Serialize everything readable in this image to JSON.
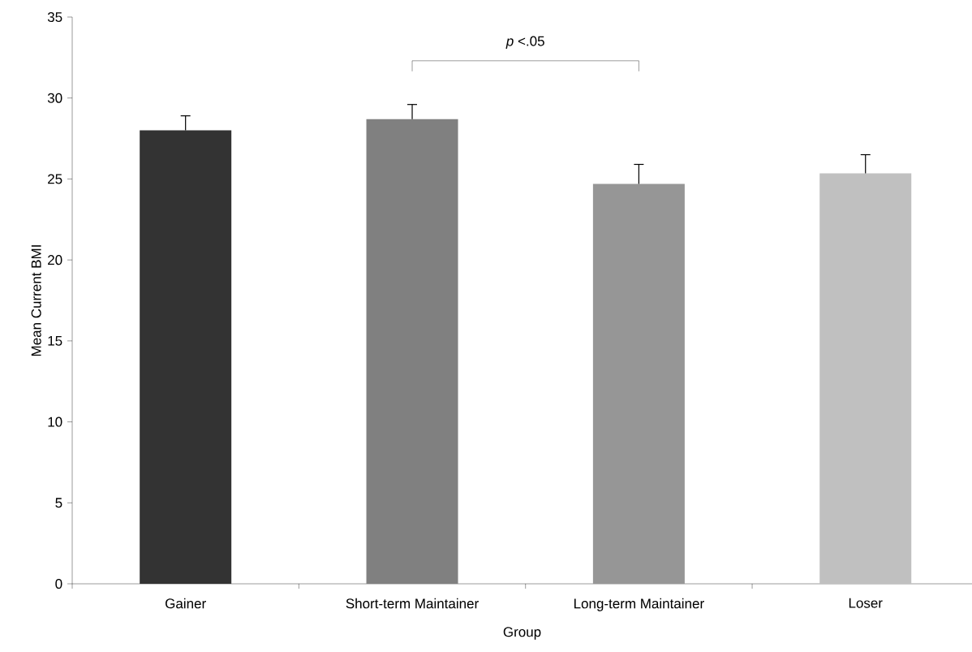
{
  "chart_data": {
    "type": "bar",
    "xlabel": "Group",
    "ylabel": "Mean Current BMI",
    "categories": [
      "Gainer",
      "Short-term Maintainer",
      "Long-term Maintainer",
      "Loser"
    ],
    "values": [
      28.0,
      28.7,
      24.7,
      25.35
    ],
    "errors": [
      [
        28.0,
        28.9
      ],
      [
        28.7,
        29.6
      ],
      [
        24.7,
        25.9
      ],
      [
        25.35,
        26.5
      ]
    ],
    "colors": [
      "#333333",
      "#808080",
      "#969696",
      "#c0c0c0"
    ],
    "ylim": [
      0,
      35
    ],
    "yticks": [
      0,
      5,
      10,
      15,
      20,
      25,
      30,
      35
    ],
    "annotations": [
      "*p* <.05"
    ]
  }
}
